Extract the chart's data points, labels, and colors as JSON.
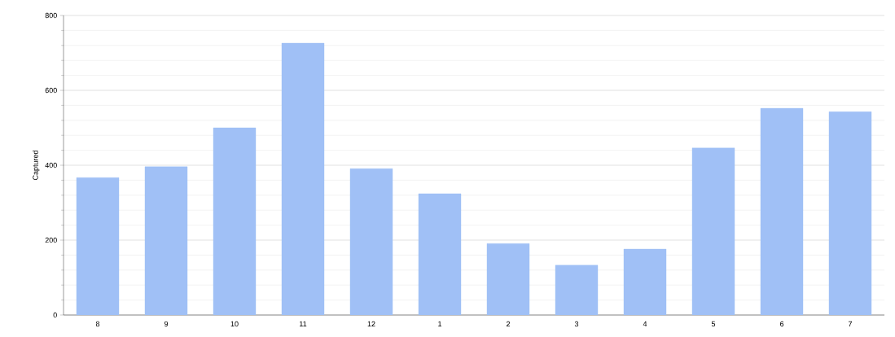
{
  "chart_data": {
    "type": "bar",
    "ylabel": "Captured",
    "categories": [
      "8",
      "9",
      "10",
      "11",
      "12",
      "1",
      "2",
      "3",
      "4",
      "5",
      "6",
      "7"
    ],
    "values": [
      367,
      396,
      500,
      726,
      391,
      324,
      191,
      133,
      176,
      446,
      552,
      543
    ],
    "color": "#a0c0f6",
    "ylim": [
      0,
      800
    ],
    "yticks": [
      0,
      200,
      400,
      600,
      800
    ],
    "grid": "y"
  }
}
